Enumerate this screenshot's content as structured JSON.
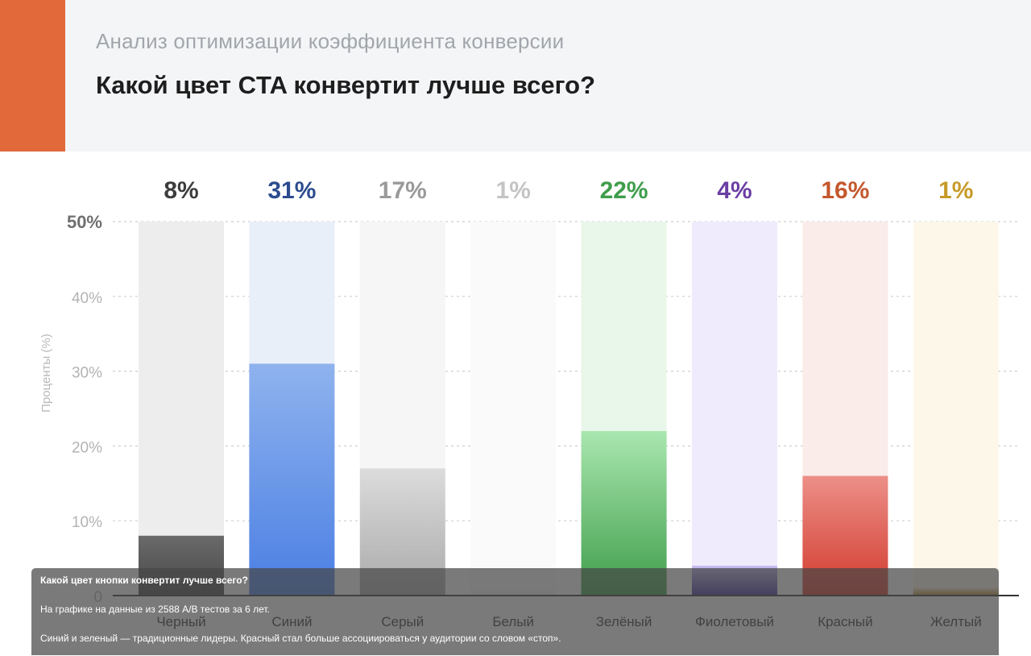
{
  "header": {
    "subtitle": "Анализ оптимизации коэффициента конверсии",
    "title": "Какой цвет CTA конвертит лучше всего?"
  },
  "chart_data": {
    "type": "bar",
    "categories": [
      "Черный",
      "Синий",
      "Серый",
      "Белый",
      "Зелёный",
      "Фиолетовый",
      "Красный",
      "Желтый"
    ],
    "values": [
      8,
      31,
      17,
      1,
      22,
      4,
      16,
      1
    ],
    "value_labels": [
      "8%",
      "31%",
      "17%",
      "1%",
      "22%",
      "4%",
      "16%",
      "1%"
    ],
    "ylabel": "Проценты (%)",
    "ylim": [
      0,
      50
    ],
    "yticks": [
      0,
      10,
      20,
      30,
      40,
      50
    ],
    "ytick_labels": [
      "0",
      "10%",
      "20%",
      "30%",
      "40%",
      "50%"
    ],
    "grid": true,
    "colors": {
      "bar_top": [
        "#6a6a6a",
        "#8fb3ee",
        "#dcdcdc",
        "#fafafa",
        "#a9e7af",
        "#cbbff0",
        "#ec8f88",
        "#f3e7c8"
      ],
      "bar_bottom": [
        "#474747",
        "#4a7ee3",
        "#a9a9a9",
        "#f0f0f0",
        "#3f9d4b",
        "#3d2f9a",
        "#d23a2d",
        "#b7862b"
      ],
      "track": [
        "#ededed",
        "#e9eff9",
        "#f6f6f6",
        "#fafafa",
        "#e9f6ea",
        "#efebfc",
        "#f9ece9",
        "#fdf7ea"
      ],
      "label": [
        "#3d3d3d",
        "#2c4c8f",
        "#9a9a9a",
        "#c4c4c4",
        "#3f9d4b",
        "#6a3ea3",
        "#c4582d",
        "#c79a2a"
      ]
    }
  },
  "caption": {
    "question": "Какой цвет кнопки конвертит лучше всего?",
    "line1": "На графике на данные из 2588 A/B тестов за 6 лет.",
    "line2": "Синий и зеленый — традиционные лидеры. Красный стал больше ассоциироваться у аудитории со словом «стоп»."
  }
}
